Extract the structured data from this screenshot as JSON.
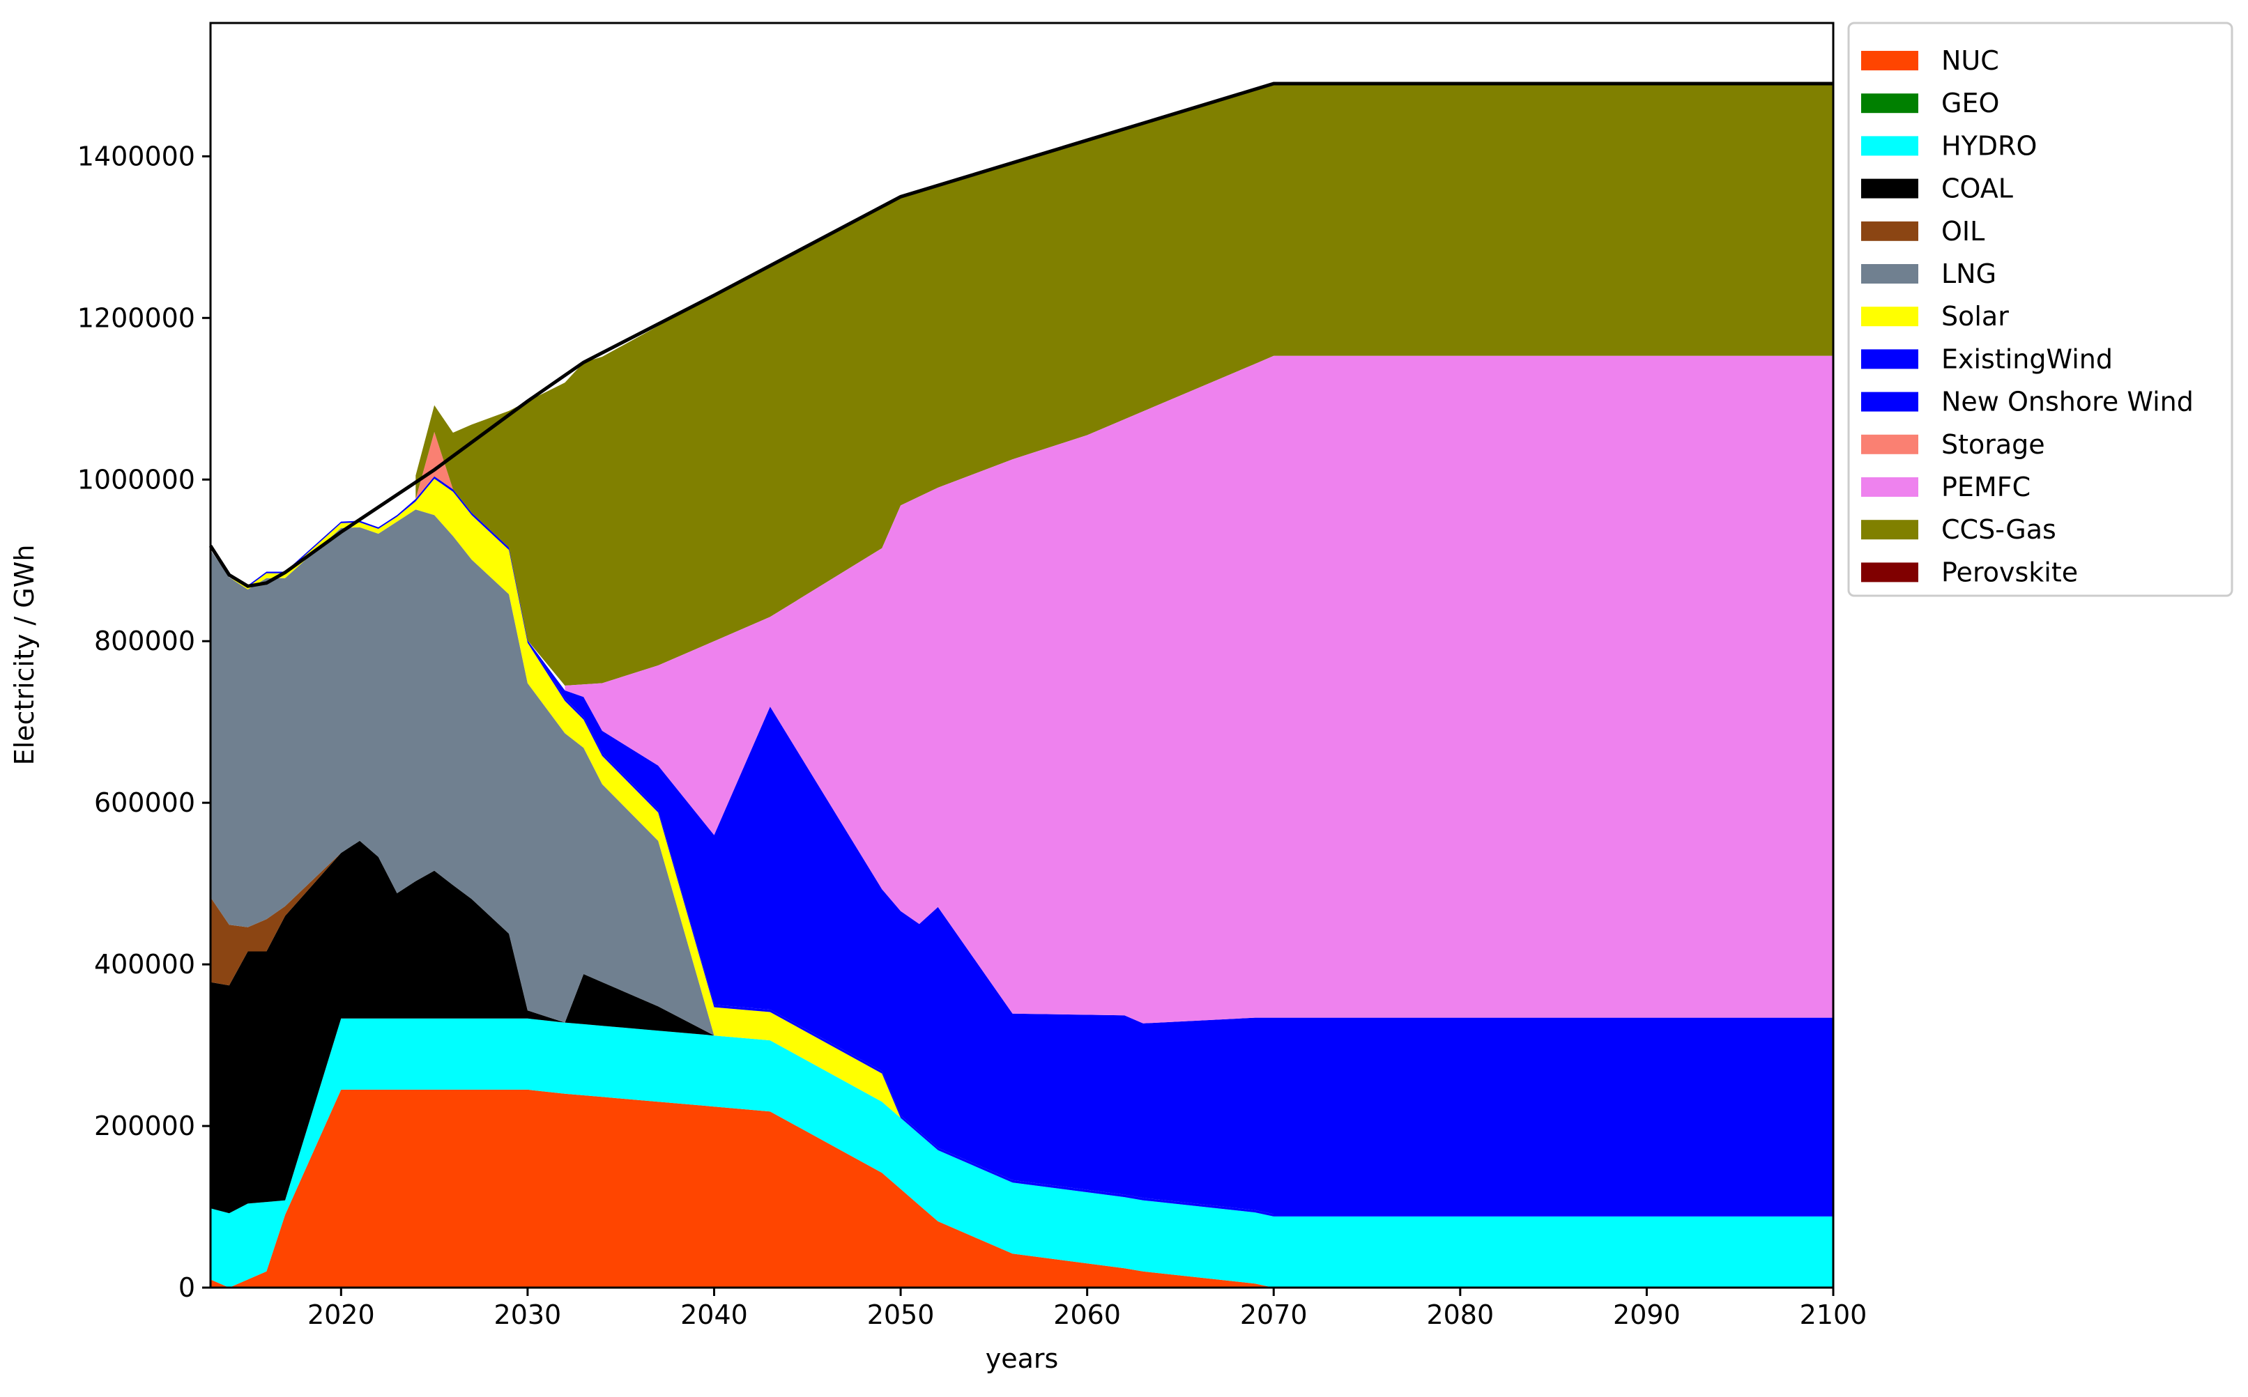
{
  "chart_data": {
    "type": "area",
    "stacked": true,
    "xlabel": "years",
    "ylabel": "Electricity / GWh",
    "xlim": [
      2013,
      2100
    ],
    "ylim": [
      0,
      1565000
    ],
    "x_ticks": [
      2020,
      2030,
      2040,
      2050,
      2060,
      2070,
      2080,
      2090,
      2100
    ],
    "y_ticks": [
      0,
      200000,
      400000,
      600000,
      800000,
      1000000,
      1200000,
      1400000
    ],
    "grid": false,
    "legend_position": "outside upper right",
    "x": [
      2013,
      2014,
      2015,
      2016,
      2017,
      2020,
      2021,
      2022,
      2023,
      2024,
      2025,
      2026,
      2027,
      2029,
      2030,
      2032,
      2033,
      2034,
      2037,
      2040,
      2043,
      2049,
      2050,
      2051,
      2052,
      2056,
      2062,
      2063,
      2069,
      2070,
      2080,
      2085,
      2086,
      2100
    ],
    "series": [
      {
        "name": "NUC",
        "color": "#ff4500",
        "values": [
          10000,
          0,
          10000,
          20000,
          90000,
          245000,
          245000,
          245000,
          245000,
          245000,
          245000,
          245000,
          245000,
          245000,
          245000,
          240000,
          238000,
          236000,
          230000,
          224000,
          218000,
          142000,
          122000,
          102000,
          82000,
          42000,
          24000,
          20000,
          5000,
          0,
          0,
          0,
          0,
          0
        ]
      },
      {
        "name": "GEO",
        "color": "#008000",
        "values": [
          0,
          0,
          0,
          0,
          0,
          0,
          0,
          0,
          0,
          0,
          0,
          0,
          0,
          0,
          0,
          0,
          0,
          0,
          0,
          0,
          0,
          0,
          0,
          0,
          0,
          0,
          0,
          0,
          0,
          0,
          0,
          0,
          0,
          0
        ]
      },
      {
        "name": "HYDRO",
        "color": "#00ffff",
        "values": [
          88000,
          92000,
          94000,
          86000,
          18000,
          88000,
          88000,
          88000,
          88000,
          88000,
          88000,
          88000,
          88000,
          88000,
          88000,
          88000,
          88000,
          88000,
          88000,
          88000,
          88000,
          88000,
          88000,
          88000,
          88000,
          88000,
          88000,
          88000,
          88000,
          88000,
          88000,
          88000,
          88000,
          88000
        ]
      },
      {
        "name": "COAL",
        "color": "#000000",
        "values": [
          280000,
          282000,
          312000,
          310000,
          352000,
          205000,
          220000,
          200000,
          155000,
          170000,
          183000,
          165000,
          148000,
          105000,
          10000,
          0,
          62000,
          54000,
          30000,
          0,
          0,
          0,
          0,
          0,
          0,
          0,
          0,
          0,
          0,
          0,
          0,
          0,
          0,
          0
        ]
      },
      {
        "name": "OIL",
        "color": "#8b4513",
        "values": [
          105000,
          75000,
          30000,
          40000,
          12000,
          0,
          0,
          0,
          0,
          0,
          0,
          0,
          0,
          0,
          0,
          0,
          0,
          0,
          0,
          0,
          0,
          0,
          0,
          0,
          0,
          0,
          0,
          0,
          0,
          0,
          0,
          0,
          0,
          0
        ]
      },
      {
        "name": "LNG",
        "color": "#708090",
        "values": [
          430000,
          430000,
          418000,
          422000,
          406000,
          402000,
          388000,
          400000,
          460000,
          460000,
          440000,
          432000,
          420000,
          420000,
          405000,
          358000,
          280000,
          245000,
          205000,
          0,
          0,
          0,
          0,
          0,
          0,
          0,
          0,
          0,
          0,
          0,
          0,
          0,
          0,
          0
        ]
      },
      {
        "name": "Solar",
        "color": "#ffff00",
        "values": [
          0,
          0,
          3000,
          6000,
          6000,
          6000,
          6000,
          6000,
          6000,
          10000,
          45000,
          55000,
          55000,
          55000,
          50000,
          40000,
          35000,
          35000,
          35000,
          35000,
          35000,
          35000,
          0,
          0,
          0,
          0,
          0,
          0,
          0,
          0,
          0,
          0,
          0,
          0
        ]
      },
      {
        "name": "ExistingWind",
        "color": "#0000ff",
        "values": [
          0,
          0,
          2000,
          2000,
          2000,
          2000,
          2000,
          2000,
          2000,
          3000,
          3000,
          3000,
          3000,
          3000,
          3000,
          3000,
          3000,
          3000,
          3000,
          3000,
          3000,
          3000,
          3000,
          3000,
          3000,
          3000,
          3000,
          3000,
          3000,
          3000,
          3000,
          3000,
          3000,
          3000
        ]
      },
      {
        "name": "New Onshore Wind",
        "color": "#0000ff",
        "values": [
          0,
          0,
          0,
          0,
          0,
          0,
          0,
          0,
          0,
          0,
          0,
          0,
          0,
          0,
          0,
          10000,
          25000,
          28000,
          55000,
          210000,
          375000,
          225000,
          253000,
          257000,
          298000,
          206000,
          222000,
          216000,
          238000,
          243000,
          243000,
          243000,
          243000,
          243000
        ]
      },
      {
        "name": "Storage",
        "color": "#fa8072",
        "values": [
          0,
          0,
          0,
          0,
          0,
          0,
          0,
          0,
          0,
          0,
          55000,
          0,
          0,
          0,
          0,
          0,
          0,
          0,
          0,
          0,
          0,
          0,
          0,
          0,
          0,
          0,
          0,
          0,
          0,
          0,
          0,
          0,
          0,
          0
        ]
      },
      {
        "name": "PEMFC",
        "color": "#ee82ee",
        "values": [
          0,
          0,
          0,
          0,
          0,
          0,
          0,
          0,
          0,
          0,
          0,
          0,
          0,
          0,
          0,
          0,
          0,
          0,
          0,
          0,
          0,
          0,
          0,
          0,
          0,
          0,
          0,
          0,
          0,
          0,
          0,
          0,
          0,
          0
        ]
      },
      {
        "name": "CCS-Gas",
        "color": "#808000",
        "values": [
          0,
          0,
          0,
          0,
          0,
          0,
          0,
          0,
          0,
          0,
          0,
          0,
          0,
          0,
          0,
          0,
          0,
          0,
          0,
          0,
          0,
          0,
          0,
          0,
          0,
          0,
          0,
          0,
          0,
          0,
          0,
          0,
          0,
          0
        ]
      },
      {
        "name": "Perovskite",
        "color": "#800000",
        "values": [
          0,
          0,
          0,
          0,
          0,
          0,
          0,
          0,
          0,
          0,
          0,
          0,
          0,
          0,
          0,
          0,
          0,
          0,
          0,
          0,
          0,
          0,
          0,
          0,
          0,
          0,
          0,
          0,
          0,
          0,
          0,
          0,
          0,
          0
        ]
      }
    ],
    "top_layers": {
      "PEMFC_top": [
        [
          2032,
          745000
        ],
        [
          2034,
          748000
        ],
        [
          2037,
          770000
        ],
        [
          2040,
          800000
        ],
        [
          2043,
          830000
        ],
        [
          2049,
          915000
        ],
        [
          2050,
          968000
        ],
        [
          2052,
          990000
        ],
        [
          2056,
          1025000
        ],
        [
          2060,
          1055000
        ],
        [
          2070,
          1153000
        ],
        [
          2080,
          1153000
        ],
        [
          2090,
          1153000
        ],
        [
          2100,
          1153000
        ]
      ],
      "CCS_Gas_top": [
        [
          2024,
          1005000
        ],
        [
          2025,
          1092000
        ],
        [
          2026,
          1058000
        ],
        [
          2027,
          1068000
        ],
        [
          2029,
          1085000
        ],
        [
          2030,
          1097000
        ],
        [
          2032,
          1120000
        ],
        [
          2033,
          1145000
        ],
        [
          2034,
          1152000
        ],
        [
          2040,
          1228000
        ],
        [
          2050,
          1350000
        ],
        [
          2060,
          1420000
        ],
        [
          2070,
          1490000
        ],
        [
          2080,
          1490000
        ],
        [
          2090,
          1490000
        ],
        [
          2100,
          1490000
        ]
      ]
    },
    "demand_line": {
      "color": "#000000",
      "points": [
        [
          2013,
          918000
        ],
        [
          2014,
          882000
        ],
        [
          2015,
          868000
        ],
        [
          2016,
          872000
        ],
        [
          2017,
          885000
        ],
        [
          2020,
          935000
        ],
        [
          2025,
          1012000
        ],
        [
          2030,
          1097000
        ],
        [
          2033,
          1145000
        ],
        [
          2040,
          1228000
        ],
        [
          2050,
          1350000
        ],
        [
          2060,
          1420000
        ],
        [
          2070,
          1490000
        ],
        [
          2080,
          1490000
        ],
        [
          2090,
          1490000
        ],
        [
          2100,
          1490000
        ]
      ]
    }
  }
}
